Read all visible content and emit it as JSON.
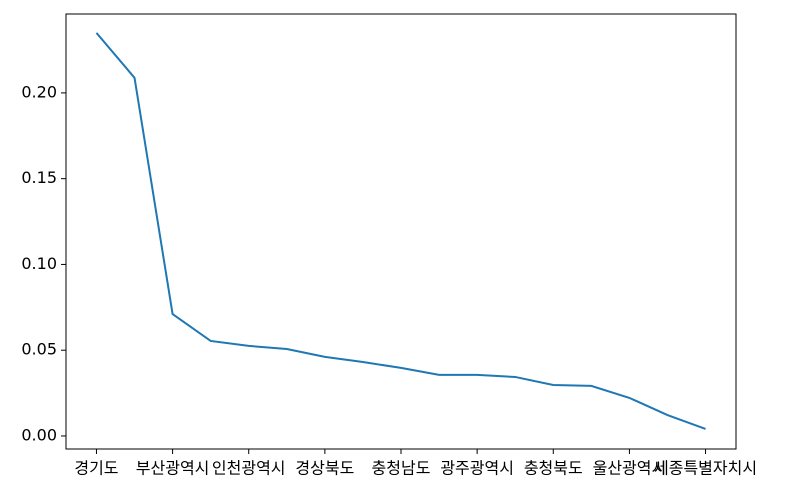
{
  "chart_data": {
    "type": "line",
    "categories": [
      "경기도",
      null,
      "부산광역시",
      null,
      "인천광역시",
      null,
      "경상북도",
      null,
      "충청남도",
      null,
      "광주광역시",
      null,
      "충청북도",
      null,
      "울산광역시",
      null,
      "세종특별자치시"
    ],
    "series": [
      {
        "color": "#1f77b4",
        "values": [
          0.235,
          0.2088,
          0.0711,
          0.0554,
          0.0525,
          0.0507,
          0.0461,
          0.0431,
          0.0397,
          0.0356,
          0.0356,
          0.0344,
          0.0297,
          0.0292,
          0.0222,
          0.0122,
          0.0041
        ]
      }
    ],
    "xlim": [
      -0.8,
      16.8
    ],
    "ylim": [
      -0.0076,
      0.246
    ],
    "yticks": [
      {
        "value": 0,
        "label": "0.00"
      },
      {
        "value": 0.05,
        "label": "0.05"
      },
      {
        "value": 0.1,
        "label": "0.10"
      },
      {
        "value": 0.15,
        "label": "0.15"
      },
      {
        "value": 0.2,
        "label": "0.20"
      }
    ]
  }
}
